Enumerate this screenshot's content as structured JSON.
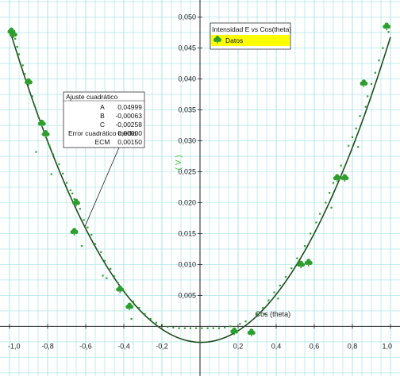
{
  "chart_data": {
    "type": "scatter",
    "title": "",
    "xlabel": "Cos (theta)",
    "ylabel": "( V )",
    "xlim": [
      -1.0,
      1.0
    ],
    "ylim": [
      -0.007,
      0.052
    ],
    "grid": true,
    "x_ticks": [
      -1.0,
      -0.8,
      -0.6,
      -0.4,
      -0.2,
      0.2,
      0.4,
      0.6,
      0.8,
      1.0
    ],
    "x_tick_labels": [
      "-1,0",
      "-0,8",
      "-0,6",
      "-0,4",
      "-0,2",
      "0,2",
      "0,4",
      "0,6",
      "0,8",
      "1,0"
    ],
    "y_ticks": [
      0.005,
      0.01,
      0.015,
      0.02,
      0.025,
      0.03,
      0.035,
      0.04,
      0.045,
      0.05
    ],
    "y_tick_labels": [
      "0,005",
      "0,010",
      "0,015",
      "0,020",
      "0,025",
      "0,030",
      "0,035",
      "0,040",
      "0,045",
      "0,050"
    ],
    "series": [
      {
        "name": "Datos",
        "color": "#2e9e2e",
        "marker": "club",
        "points": [
          [
            -0.99,
            0.0477
          ],
          [
            -0.98,
            0.0472
          ],
          [
            -0.9,
            0.0395
          ],
          [
            -0.83,
            0.0328
          ],
          [
            -0.81,
            0.0311
          ],
          [
            -0.65,
            0.02
          ],
          [
            -0.66,
            0.0153
          ],
          [
            -0.42,
            0.006
          ],
          [
            -0.37,
            0.0032
          ],
          [
            0.18,
            -0.0008
          ],
          [
            0.27,
            -0.001
          ],
          [
            0.53,
            0.01
          ],
          [
            0.57,
            0.0103
          ],
          [
            0.72,
            0.024
          ],
          [
            0.76,
            0.024
          ],
          [
            0.86,
            0.0393
          ],
          [
            0.98,
            0.0485
          ]
        ]
      },
      {
        "name": "",
        "color": "#2e9e2e",
        "marker": "dot",
        "points": [
          [
            -0.97,
            0.0465
          ],
          [
            -0.96,
            0.0452
          ],
          [
            -0.95,
            0.044
          ],
          [
            -0.93,
            0.0422
          ],
          [
            -0.92,
            0.0408
          ],
          [
            -0.91,
            0.0398
          ],
          [
            -0.88,
            0.0372
          ],
          [
            -0.87,
            0.0358
          ],
          [
            -0.85,
            0.034
          ],
          [
            -0.84,
            0.0327
          ],
          [
            -0.82,
            0.0312
          ],
          [
            -0.79,
            0.0292
          ],
          [
            -0.77,
            0.0278
          ],
          [
            -0.74,
            0.0262
          ],
          [
            -0.72,
            0.0247
          ],
          [
            -0.7,
            0.0232
          ],
          [
            -0.68,
            0.022
          ],
          [
            -0.66,
            0.0206
          ],
          [
            -0.63,
            0.019
          ],
          [
            -0.61,
            0.0172
          ],
          [
            -0.59,
            0.016
          ],
          [
            -0.57,
            0.0148
          ],
          [
            -0.55,
            0.0133
          ],
          [
            -0.52,
            0.012
          ],
          [
            -0.5,
            0.0106
          ],
          [
            -0.47,
            0.0093
          ],
          [
            -0.45,
            0.0081
          ],
          [
            -0.43,
            0.007
          ],
          [
            -0.39,
            0.0053
          ],
          [
            -0.35,
            0.004
          ],
          [
            -0.32,
            0.003
          ],
          [
            -0.29,
            0.002
          ],
          [
            -0.26,
            0.0012
          ],
          [
            -0.23,
            0.0006
          ],
          [
            -0.2,
            0.0002
          ],
          [
            -0.17,
            -0.0001
          ],
          [
            -0.14,
            -0.0002
          ],
          [
            -0.11,
            -0.0003
          ],
          [
            -0.08,
            -0.0003
          ],
          [
            -0.05,
            -0.0003
          ],
          [
            -0.02,
            -0.0003
          ],
          [
            0.01,
            -0.0003
          ],
          [
            0.04,
            -0.0003
          ],
          [
            0.07,
            -0.0003
          ],
          [
            0.1,
            -0.0003
          ],
          [
            0.13,
            -0.0002
          ],
          [
            0.16,
            0.0
          ],
          [
            0.21,
            0.0004
          ],
          [
            0.24,
            0.0008
          ],
          [
            0.3,
            0.002
          ],
          [
            0.33,
            0.003
          ],
          [
            0.36,
            0.0042
          ],
          [
            0.39,
            0.0055
          ],
          [
            0.42,
            0.0066
          ],
          [
            0.45,
            0.008
          ],
          [
            0.48,
            0.0094
          ],
          [
            0.51,
            0.011
          ],
          [
            0.55,
            0.013
          ],
          [
            0.58,
            0.015
          ],
          [
            0.61,
            0.0168
          ],
          [
            0.63,
            0.0182
          ],
          [
            0.66,
            0.02
          ],
          [
            0.68,
            0.0216
          ],
          [
            0.7,
            0.0232
          ],
          [
            0.74,
            0.026
          ],
          [
            0.78,
            0.0292
          ],
          [
            0.8,
            0.0306
          ],
          [
            0.82,
            0.032
          ],
          [
            0.84,
            0.034
          ],
          [
            0.88,
            0.0372
          ],
          [
            0.9,
            0.0392
          ],
          [
            0.92,
            0.041
          ],
          [
            0.94,
            0.043
          ],
          [
            0.96,
            0.045
          ],
          [
            0.99,
            0.0476
          ],
          [
            -0.86,
            0.0282
          ],
          [
            -0.78,
            0.0246
          ],
          [
            -0.67,
            0.0215
          ],
          [
            -0.62,
            0.013
          ],
          [
            -0.51,
            0.0082
          ],
          [
            -0.49,
            0.0078
          ],
          [
            -0.36,
            0.0012
          ],
          [
            0.34,
            0.002
          ],
          [
            0.41,
            0.0045
          ],
          [
            0.69,
            0.0192
          ],
          [
            0.83,
            0.029
          ],
          [
            0.87,
            0.0355
          ]
        ]
      }
    ],
    "fit": {
      "A": 0.04999,
      "B": -0.00063,
      "C": -0.00258
    },
    "fit_box": {
      "title": "Ajuste cuadrático",
      "rows": [
        {
          "label": "A",
          "value": "0,04999"
        },
        {
          "label": "B",
          "value": "-0,00063"
        },
        {
          "label": "C",
          "value": "-0,00258"
        },
        {
          "label": "Error cuadrático medio",
          "value": "0,00000"
        },
        {
          "label": "ECM",
          "value": "0,00150"
        }
      ]
    },
    "legend": {
      "title": "Intensidad E vs Cos(theta)",
      "entries": [
        "Datos"
      ],
      "placement": "top-center-right"
    }
  }
}
